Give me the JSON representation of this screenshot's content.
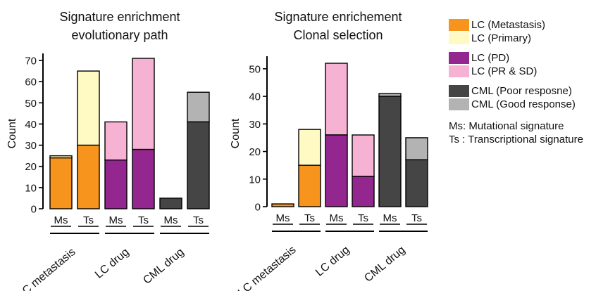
{
  "chart_data": [
    {
      "type": "bar",
      "stacked": true,
      "title": "Signature enrichment evolutionary path",
      "title_lines": [
        "Signature enrichment",
        "evolutionary path"
      ],
      "ylabel": "Count",
      "ylim": [
        0,
        70
      ],
      "yticks": [
        0,
        10,
        20,
        30,
        40,
        50,
        60,
        70
      ],
      "categories": [
        "Ms",
        "Ts",
        "Ms",
        "Ts",
        "Ms",
        "Ts"
      ],
      "groups": [
        "LC metastasis",
        "LC drug",
        "CML drug"
      ],
      "bars": [
        {
          "bottom": 24,
          "top": 1,
          "bottom_series": "LC (Metastasis)",
          "top_series": "LC (Primary)"
        },
        {
          "bottom": 30,
          "top": 35,
          "bottom_series": "LC (Metastasis)",
          "top_series": "LC (Primary)"
        },
        {
          "bottom": 23,
          "top": 18,
          "bottom_series": "LC (PD)",
          "top_series": "LC (PR & SD)"
        },
        {
          "bottom": 28,
          "top": 43,
          "bottom_series": "LC (PD)",
          "top_series": "LC (PR & SD)"
        },
        {
          "bottom": 5,
          "top": 0,
          "bottom_series": "CML (Poor resposne)",
          "top_series": "CML (Good response)"
        },
        {
          "bottom": 41,
          "top": 14,
          "bottom_series": "CML (Poor resposne)",
          "top_series": "CML (Good response)"
        }
      ]
    },
    {
      "type": "bar",
      "stacked": true,
      "title": "Signature enrichement Clonal selection",
      "title_lines": [
        "Signature enrichement",
        "Clonal selection"
      ],
      "ylabel": "Count",
      "ylim": [
        0,
        52
      ],
      "yticks": [
        0,
        10,
        20,
        30,
        40,
        50
      ],
      "categories": [
        "Ms",
        "Ts",
        "Ms",
        "Ts",
        "Ms",
        "Ts"
      ],
      "groups": [
        "LC metastasis",
        "LC drug",
        "CML drug"
      ],
      "bars": [
        {
          "bottom": 1,
          "top": 0,
          "bottom_series": "LC (Metastasis)",
          "top_series": "LC (Primary)"
        },
        {
          "bottom": 15,
          "top": 13,
          "bottom_series": "LC (Metastasis)",
          "top_series": "LC (Primary)"
        },
        {
          "bottom": 26,
          "top": 26,
          "bottom_series": "LC (PD)",
          "top_series": "LC (PR & SD)"
        },
        {
          "bottom": 11,
          "top": 15,
          "bottom_series": "LC (PD)",
          "top_series": "LC (PR & SD)"
        },
        {
          "bottom": 40,
          "top": 1,
          "bottom_series": "CML (Poor resposne)",
          "top_series": "CML (Good response)"
        },
        {
          "bottom": 17,
          "top": 8,
          "bottom_series": "CML (Poor resposne)",
          "top_series": "CML (Good response)"
        }
      ]
    }
  ],
  "legend": {
    "groups": [
      [
        {
          "label": "LC (Metastasis)",
          "color": "#f7941d"
        },
        {
          "label": "LC (Primary)",
          "color": "#fff9c4"
        }
      ],
      [
        {
          "label": "LC (PD)",
          "color": "#93278f"
        },
        {
          "label": "LC (PR & SD)",
          "color": "#f6b2d3"
        }
      ],
      [
        {
          "label": "CML (Poor resposne)",
          "color": "#454545"
        },
        {
          "label": "CML (Good response)",
          "color": "#b3b3b3"
        }
      ]
    ],
    "notes": [
      "Ms: Mutational signature",
      "Ts : Transcriptional signature"
    ]
  },
  "colors": {
    "LC (Metastasis)": "#f7941d",
    "LC (Primary)": "#fff9c4",
    "LC (PD)": "#93278f",
    "LC (PR & SD)": "#f6b2d3",
    "CML (Poor resposne)": "#454545",
    "CML (Good response)": "#b3b3b3"
  }
}
